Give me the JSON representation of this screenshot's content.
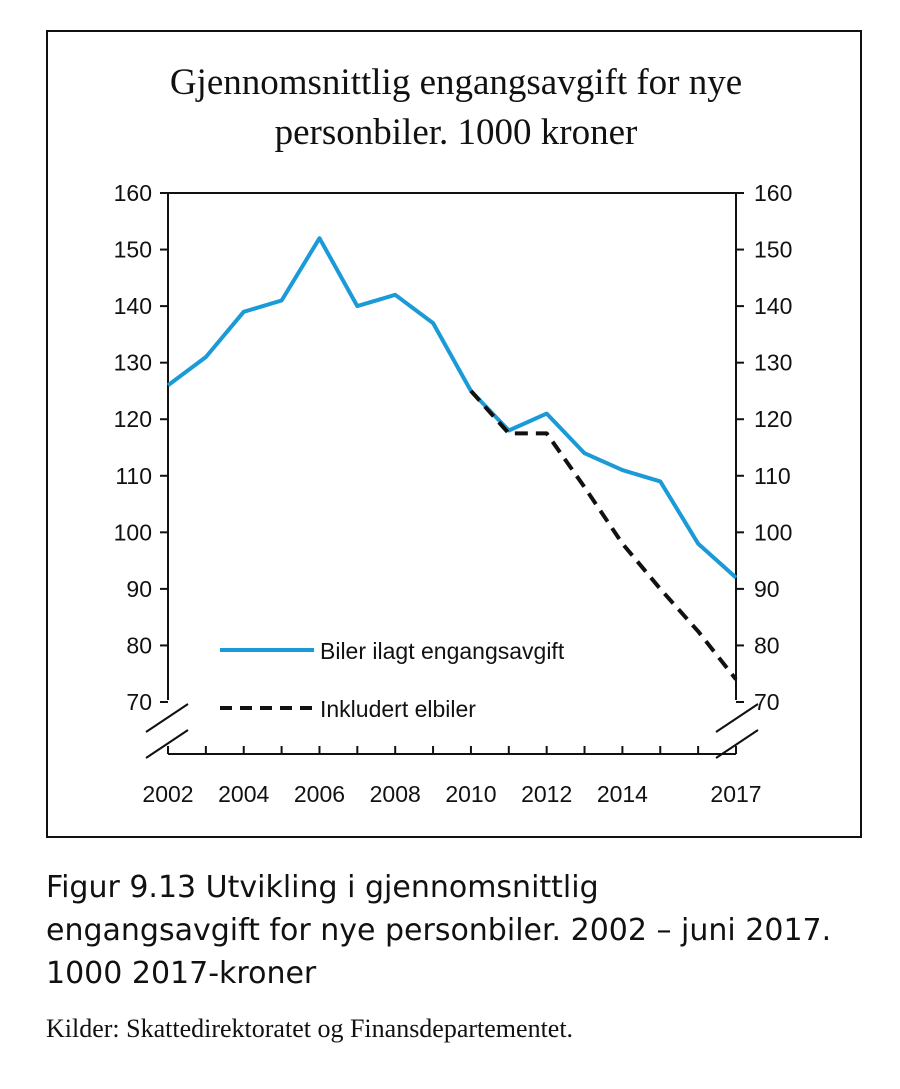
{
  "chart_data": {
    "type": "line",
    "title_line1": "Gjennomsnittlig engangsavgift for nye",
    "title_line2": "personbiler. 1000 kroner",
    "xlabel": "",
    "ylabel": "",
    "ylim": [
      70,
      160
    ],
    "yticks": [
      70,
      80,
      90,
      100,
      110,
      120,
      130,
      140,
      150,
      160
    ],
    "xlim": [
      2002,
      2017
    ],
    "xtick_labels": [
      "2002",
      "2004",
      "2006",
      "2008",
      "2010",
      "2012",
      "2014",
      "2017"
    ],
    "xtick_values": [
      2002,
      2004,
      2006,
      2008,
      2010,
      2012,
      2014,
      2017
    ],
    "axis_break": true,
    "secondary_y_axis": true,
    "legend_position": "bottom-left",
    "series": [
      {
        "name": "Biler ilagt engangsavgift",
        "color": "#1a9ad6",
        "style": "solid",
        "x": [
          2002,
          2003,
          2004,
          2005,
          2006,
          2007,
          2008,
          2009,
          2010,
          2011,
          2012,
          2013,
          2014,
          2015,
          2016,
          2017
        ],
        "y": [
          126,
          131,
          139,
          141,
          152,
          140,
          142,
          137,
          125,
          118,
          121,
          114,
          111,
          109,
          98,
          92
        ]
      },
      {
        "name": "Inkludert elbiler",
        "color": "#111111",
        "style": "dashed",
        "x": [
          2010,
          2011,
          2012,
          2013,
          2014,
          2015,
          2016,
          2017
        ],
        "y": [
          125,
          117.5,
          117.5,
          108,
          98,
          90,
          82.5,
          74
        ]
      }
    ]
  },
  "caption": {
    "line1": "Figur 9.13  Utvikling i gjennomsnittlig",
    "line2": "engangsavgift for nye personbiler. 2002 – juni 2017.",
    "line3": "1000 2017-kroner"
  },
  "source": "Kilder: Skattedirektoratet og Finansdepartementet."
}
